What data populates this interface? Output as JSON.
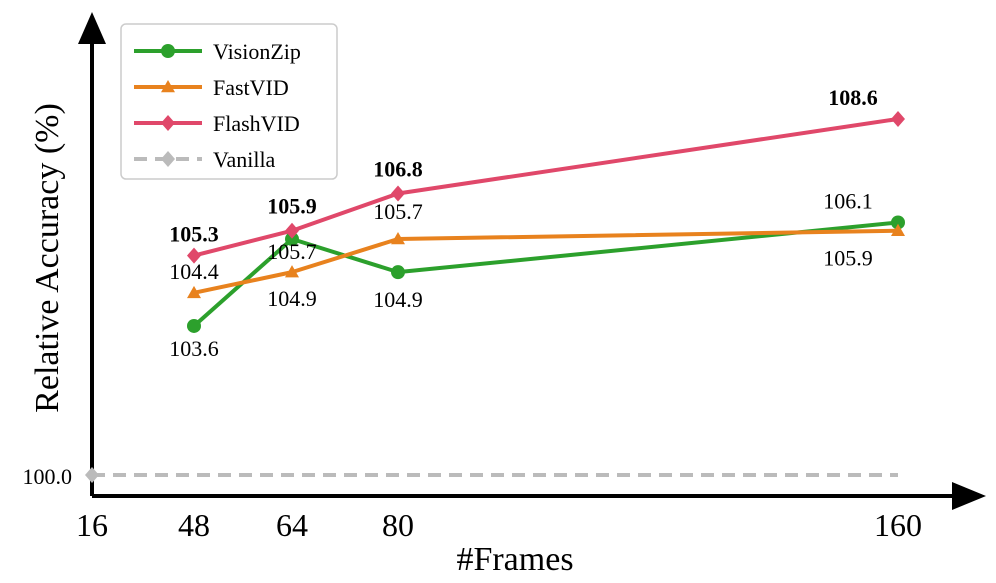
{
  "chart_data": {
    "type": "line",
    "xlabel": "#Frames",
    "ylabel": "Relative Accuracy (%)",
    "x_ticks": [
      "16",
      "48",
      "64",
      "80",
      "160"
    ],
    "y_tick": "100.0",
    "ylim": [
      99.6,
      109.9
    ],
    "grid": false,
    "legend_position": "top-left",
    "series": [
      {
        "name": "VisionZip",
        "color": "#2ca02c",
        "marker": "circle",
        "x": [
          48,
          64,
          80,
          160
        ],
        "values": [
          103.6,
          105.7,
          104.9,
          106.1
        ],
        "labels": [
          "103.6",
          "105.7",
          "104.9",
          "106.1"
        ],
        "bold": false
      },
      {
        "name": "FastVID",
        "color": "#e8821e",
        "marker": "triangle",
        "x": [
          48,
          64,
          80,
          160
        ],
        "values": [
          104.4,
          104.9,
          105.7,
          105.9
        ],
        "labels": [
          "104.4",
          "104.9",
          "105.7",
          "105.9"
        ],
        "bold": false
      },
      {
        "name": "FlashVID",
        "color": "#e0486a",
        "marker": "diamond",
        "x": [
          48,
          64,
          80,
          160
        ],
        "values": [
          105.3,
          105.9,
          106.8,
          108.6
        ],
        "labels": [
          "105.3",
          "105.9",
          "106.8",
          "108.6"
        ],
        "bold": true
      },
      {
        "name": "Vanilla",
        "color": "#bbbbbb",
        "marker": "diamond",
        "dashed": true,
        "x": [
          16,
          160
        ],
        "values": [
          100.0,
          100.0
        ]
      }
    ]
  }
}
